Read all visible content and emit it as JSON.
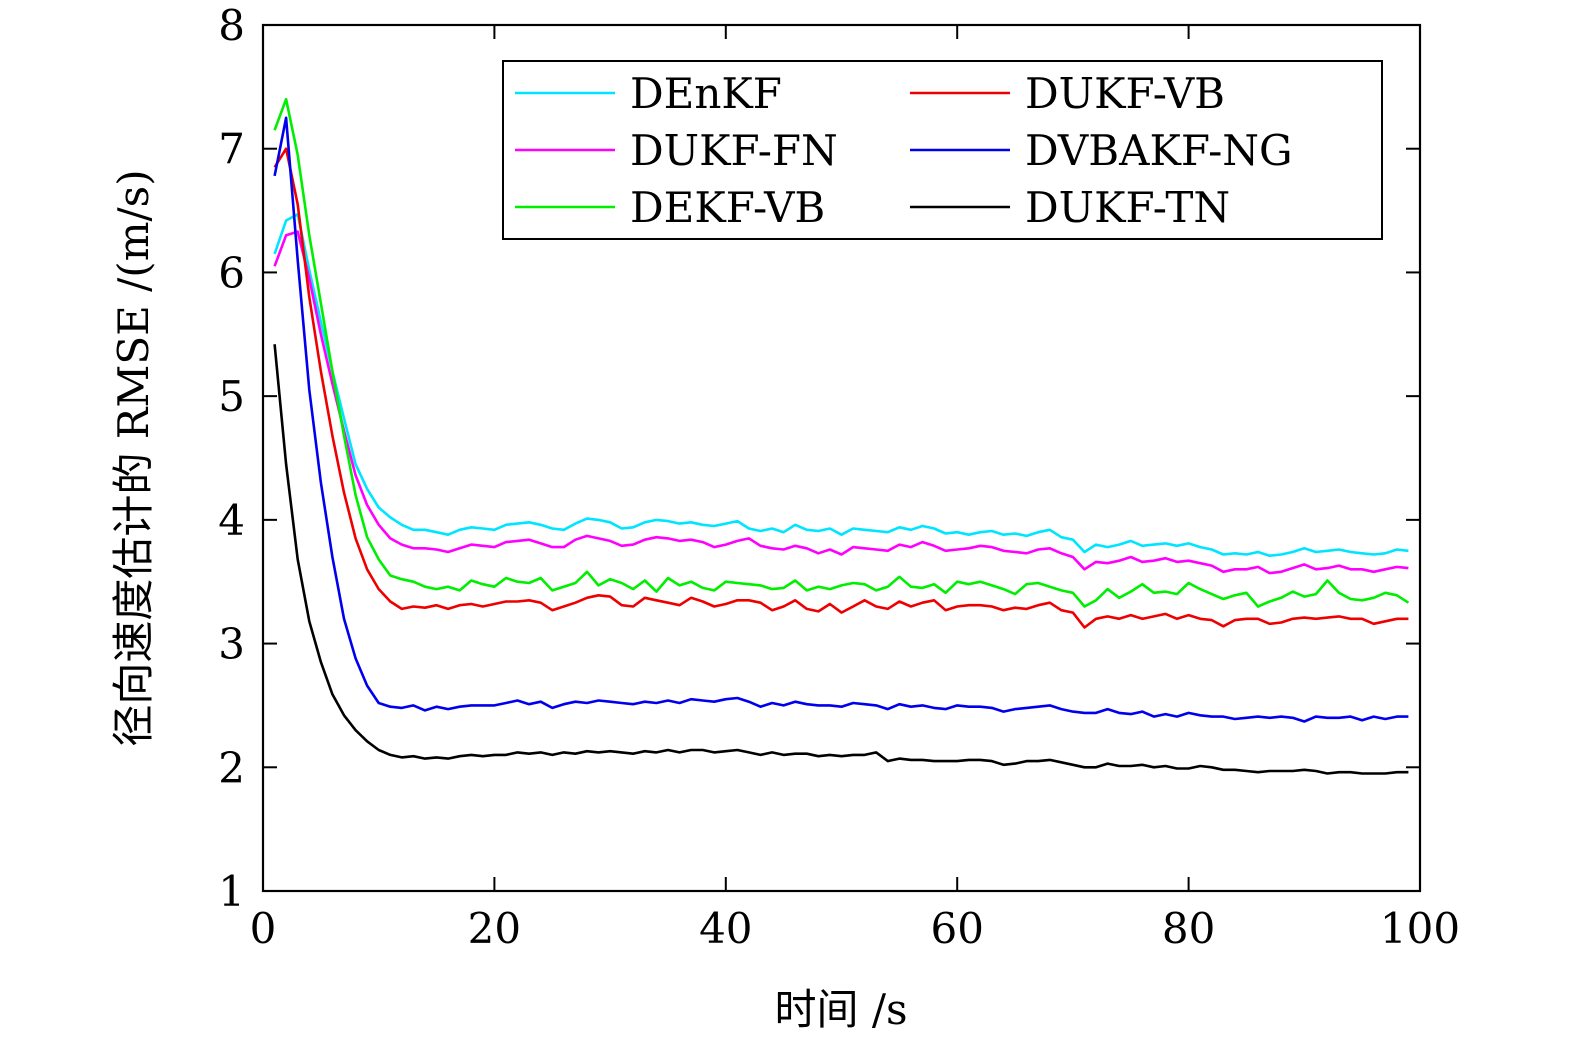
{
  "chart_data": {
    "type": "line",
    "xlabel": "时间 /s",
    "ylabel": "径向速度估计的 RMSE /(m/s)",
    "xlim": [
      0,
      100
    ],
    "ylim": [
      1,
      8
    ],
    "xticks": [
      0,
      20,
      40,
      60,
      80,
      100
    ],
    "yticks": [
      1,
      2,
      3,
      4,
      5,
      6,
      7,
      8
    ],
    "grid": false,
    "legend_position": "top-right",
    "x": [
      1,
      2,
      3,
      4,
      5,
      6,
      7,
      8,
      9,
      10,
      11,
      12,
      13,
      14,
      15,
      16,
      17,
      18,
      19,
      20,
      21,
      22,
      23,
      24,
      25,
      26,
      27,
      28,
      29,
      30,
      31,
      32,
      33,
      34,
      35,
      36,
      37,
      38,
      39,
      40,
      41,
      42,
      43,
      44,
      45,
      46,
      47,
      48,
      49,
      50,
      51,
      52,
      53,
      54,
      55,
      56,
      57,
      58,
      59,
      60,
      61,
      62,
      63,
      64,
      65,
      66,
      67,
      68,
      69,
      70,
      71,
      72,
      73,
      74,
      75,
      76,
      77,
      78,
      79,
      80,
      81,
      82,
      83,
      84,
      85,
      86,
      87,
      88,
      89,
      90,
      91,
      92,
      93,
      94,
      95,
      96,
      97,
      98,
      99
    ],
    "series": [
      {
        "name": "DEnKF",
        "color": "#00e5ff",
        "values": [
          6.15,
          6.42,
          6.47,
          6.02,
          5.6,
          5.2,
          4.82,
          4.45,
          4.25,
          4.1,
          4.02,
          3.96,
          3.92,
          3.92,
          3.9,
          3.88,
          3.92,
          3.94,
          3.93,
          3.92,
          3.96,
          3.97,
          3.98,
          3.96,
          3.93,
          3.92,
          3.97,
          4.01,
          4.0,
          3.98,
          3.93,
          3.94,
          3.98,
          4.0,
          3.99,
          3.97,
          3.98,
          3.96,
          3.95,
          3.97,
          3.99,
          3.93,
          3.91,
          3.93,
          3.9,
          3.96,
          3.92,
          3.91,
          3.93,
          3.88,
          3.93,
          3.92,
          3.91,
          3.9,
          3.94,
          3.92,
          3.95,
          3.93,
          3.89,
          3.9,
          3.88,
          3.9,
          3.91,
          3.88,
          3.89,
          3.87,
          3.9,
          3.92,
          3.86,
          3.84,
          3.74,
          3.8,
          3.78,
          3.8,
          3.83,
          3.79,
          3.8,
          3.81,
          3.79,
          3.81,
          3.78,
          3.76,
          3.72,
          3.73,
          3.72,
          3.74,
          3.71,
          3.72,
          3.74,
          3.77,
          3.74,
          3.75,
          3.76,
          3.74,
          3.73,
          3.72,
          3.73,
          3.76,
          3.75
        ]
      },
      {
        "name": "DUKF-FN",
        "color": "#ff00ff",
        "values": [
          6.05,
          6.3,
          6.33,
          5.95,
          5.5,
          5.1,
          4.72,
          4.36,
          4.12,
          3.96,
          3.85,
          3.8,
          3.77,
          3.77,
          3.76,
          3.74,
          3.77,
          3.8,
          3.79,
          3.78,
          3.82,
          3.83,
          3.84,
          3.81,
          3.78,
          3.78,
          3.84,
          3.87,
          3.85,
          3.83,
          3.79,
          3.8,
          3.84,
          3.86,
          3.85,
          3.83,
          3.84,
          3.82,
          3.78,
          3.8,
          3.83,
          3.85,
          3.79,
          3.77,
          3.76,
          3.79,
          3.77,
          3.73,
          3.76,
          3.72,
          3.78,
          3.77,
          3.76,
          3.75,
          3.8,
          3.78,
          3.82,
          3.79,
          3.75,
          3.76,
          3.77,
          3.79,
          3.78,
          3.75,
          3.74,
          3.73,
          3.76,
          3.77,
          3.73,
          3.7,
          3.6,
          3.66,
          3.65,
          3.67,
          3.7,
          3.66,
          3.67,
          3.69,
          3.66,
          3.67,
          3.65,
          3.63,
          3.58,
          3.6,
          3.6,
          3.62,
          3.57,
          3.58,
          3.61,
          3.64,
          3.6,
          3.61,
          3.63,
          3.6,
          3.6,
          3.58,
          3.6,
          3.62,
          3.61
        ]
      },
      {
        "name": "DEKF-VB",
        "color": "#00ee00",
        "values": [
          7.15,
          7.4,
          6.95,
          6.3,
          5.75,
          5.2,
          4.68,
          4.2,
          3.86,
          3.68,
          3.55,
          3.52,
          3.5,
          3.46,
          3.44,
          3.46,
          3.43,
          3.51,
          3.48,
          3.46,
          3.53,
          3.5,
          3.49,
          3.53,
          3.43,
          3.46,
          3.49,
          3.58,
          3.47,
          3.52,
          3.49,
          3.44,
          3.51,
          3.42,
          3.53,
          3.47,
          3.5,
          3.45,
          3.43,
          3.5,
          3.49,
          3.48,
          3.47,
          3.44,
          3.45,
          3.51,
          3.43,
          3.46,
          3.44,
          3.47,
          3.49,
          3.48,
          3.43,
          3.46,
          3.54,
          3.46,
          3.45,
          3.48,
          3.41,
          3.5,
          3.48,
          3.5,
          3.47,
          3.44,
          3.4,
          3.48,
          3.49,
          3.46,
          3.43,
          3.41,
          3.3,
          3.35,
          3.44,
          3.37,
          3.42,
          3.48,
          3.41,
          3.42,
          3.4,
          3.49,
          3.44,
          3.4,
          3.36,
          3.39,
          3.41,
          3.3,
          3.34,
          3.37,
          3.42,
          3.38,
          3.4,
          3.51,
          3.41,
          3.36,
          3.35,
          3.37,
          3.41,
          3.39,
          3.33
        ]
      },
      {
        "name": "DUKF-VB",
        "color": "#ee0000",
        "values": [
          6.85,
          7.0,
          6.55,
          5.8,
          5.2,
          4.68,
          4.22,
          3.85,
          3.6,
          3.44,
          3.34,
          3.28,
          3.3,
          3.29,
          3.31,
          3.28,
          3.31,
          3.32,
          3.3,
          3.32,
          3.34,
          3.34,
          3.35,
          3.33,
          3.27,
          3.3,
          3.33,
          3.37,
          3.39,
          3.38,
          3.31,
          3.3,
          3.37,
          3.35,
          3.33,
          3.31,
          3.37,
          3.34,
          3.3,
          3.32,
          3.35,
          3.35,
          3.33,
          3.27,
          3.3,
          3.35,
          3.28,
          3.26,
          3.32,
          3.25,
          3.3,
          3.35,
          3.3,
          3.28,
          3.34,
          3.3,
          3.33,
          3.35,
          3.27,
          3.3,
          3.31,
          3.31,
          3.3,
          3.27,
          3.29,
          3.28,
          3.31,
          3.33,
          3.27,
          3.25,
          3.13,
          3.2,
          3.22,
          3.2,
          3.23,
          3.2,
          3.22,
          3.24,
          3.2,
          3.23,
          3.2,
          3.19,
          3.14,
          3.19,
          3.2,
          3.2,
          3.16,
          3.17,
          3.2,
          3.21,
          3.2,
          3.21,
          3.22,
          3.2,
          3.2,
          3.16,
          3.18,
          3.2,
          3.2
        ]
      },
      {
        "name": "DVBAKF-NG",
        "color": "#0000ee",
        "values": [
          6.78,
          7.25,
          6.1,
          5.05,
          4.3,
          3.7,
          3.2,
          2.88,
          2.66,
          2.52,
          2.49,
          2.48,
          2.5,
          2.46,
          2.49,
          2.47,
          2.49,
          2.5,
          2.5,
          2.5,
          2.52,
          2.54,
          2.51,
          2.53,
          2.48,
          2.51,
          2.53,
          2.52,
          2.54,
          2.53,
          2.52,
          2.51,
          2.53,
          2.52,
          2.54,
          2.52,
          2.55,
          2.54,
          2.53,
          2.55,
          2.56,
          2.53,
          2.49,
          2.52,
          2.5,
          2.53,
          2.51,
          2.5,
          2.5,
          2.49,
          2.52,
          2.51,
          2.5,
          2.47,
          2.51,
          2.49,
          2.5,
          2.48,
          2.47,
          2.5,
          2.49,
          2.49,
          2.48,
          2.45,
          2.47,
          2.48,
          2.49,
          2.5,
          2.47,
          2.45,
          2.44,
          2.44,
          2.47,
          2.44,
          2.43,
          2.45,
          2.41,
          2.43,
          2.41,
          2.44,
          2.42,
          2.41,
          2.41,
          2.39,
          2.4,
          2.41,
          2.4,
          2.41,
          2.4,
          2.37,
          2.41,
          2.4,
          2.4,
          2.41,
          2.38,
          2.41,
          2.39,
          2.41,
          2.41
        ]
      },
      {
        "name": "DUKF-TN",
        "color": "#000000",
        "values": [
          5.42,
          4.45,
          3.68,
          3.18,
          2.85,
          2.59,
          2.42,
          2.3,
          2.21,
          2.14,
          2.1,
          2.08,
          2.09,
          2.07,
          2.08,
          2.07,
          2.09,
          2.1,
          2.09,
          2.1,
          2.1,
          2.12,
          2.11,
          2.12,
          2.1,
          2.12,
          2.11,
          2.13,
          2.12,
          2.13,
          2.12,
          2.11,
          2.13,
          2.12,
          2.14,
          2.12,
          2.14,
          2.14,
          2.12,
          2.13,
          2.14,
          2.12,
          2.1,
          2.12,
          2.1,
          2.11,
          2.11,
          2.09,
          2.1,
          2.09,
          2.1,
          2.1,
          2.12,
          2.05,
          2.07,
          2.06,
          2.06,
          2.05,
          2.05,
          2.05,
          2.06,
          2.06,
          2.05,
          2.02,
          2.03,
          2.05,
          2.05,
          2.06,
          2.04,
          2.02,
          2.0,
          2.0,
          2.03,
          2.01,
          2.01,
          2.02,
          2.0,
          2.01,
          1.99,
          1.99,
          2.01,
          2.0,
          1.98,
          1.98,
          1.97,
          1.96,
          1.97,
          1.97,
          1.97,
          1.98,
          1.97,
          1.95,
          1.96,
          1.96,
          1.95,
          1.95,
          1.95,
          1.96,
          1.96
        ]
      }
    ]
  }
}
